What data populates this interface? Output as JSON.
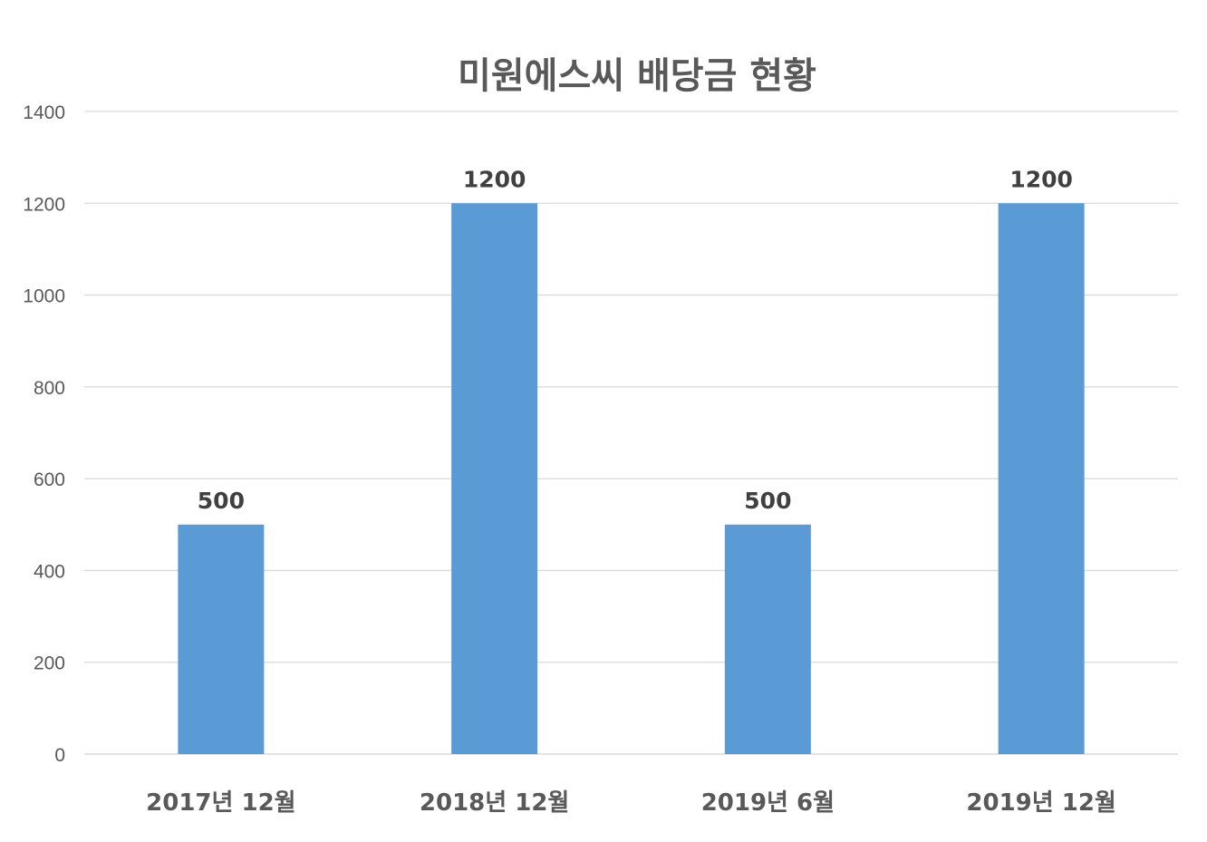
{
  "chart_data": {
    "type": "bar",
    "title": "미원에스씨 배당금 현황",
    "categories": [
      "2017년 12월",
      "2018년 12월",
      "2019년 6월",
      "2019년 12월"
    ],
    "values": [
      500,
      1200,
      500,
      1200
    ],
    "ylim": [
      0,
      1400
    ],
    "yticks": [
      "0",
      "200",
      "400",
      "600",
      "800",
      "1000",
      "1200",
      "1400"
    ],
    "ytick_values": [
      0,
      200,
      400,
      600,
      800,
      1000,
      1200,
      1400
    ],
    "xlabel": "",
    "ylabel": "",
    "grid": true,
    "legend": "none",
    "data_labels": true,
    "colors": {
      "bar": "#5b9bd5",
      "grid": "#d9d9d9",
      "text": "#595959"
    }
  }
}
